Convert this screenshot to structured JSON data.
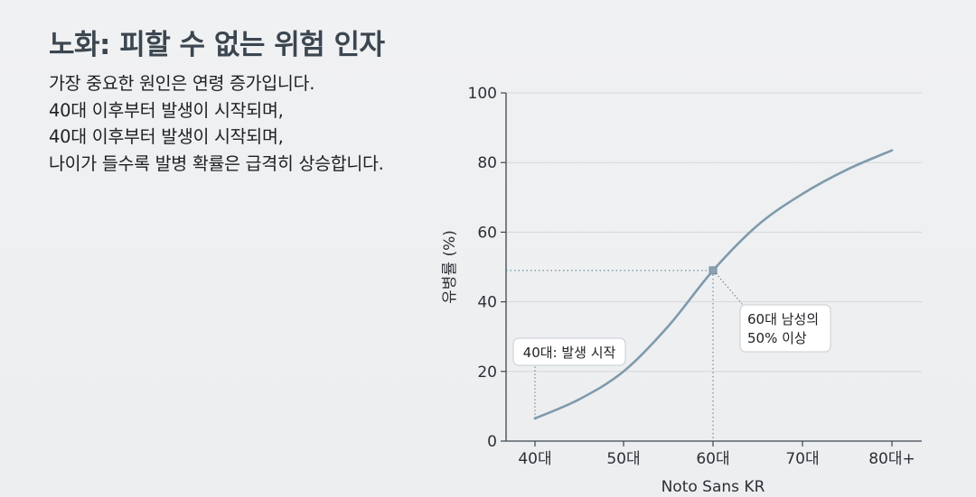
{
  "slide": {
    "title": "노화: 피할 수 없는 위험 인자",
    "body_lines": [
      "가장 중요한 원인은 연령 증가입니다.",
      "40대 이후부터 발생이 시작되며,",
      "40대 이후부터 발생이 시작되며,",
      "나이가 들수록 발병 확률은 급격히 상승합니다."
    ]
  },
  "chart_data": {
    "type": "line",
    "title": "",
    "xlabel": "Noto Sans KR",
    "ylabel": "유병률 (%)",
    "categories": [
      "40대",
      "50대",
      "60대",
      "70대",
      "80대+"
    ],
    "yticks": [
      0,
      20,
      40,
      60,
      80,
      100
    ],
    "ylim": [
      0,
      100
    ],
    "grid": true,
    "series": [
      {
        "x": [
          40,
          45,
          50,
          55,
          60,
          65,
          70,
          75,
          80
        ],
        "values": [
          6.5,
          12,
          20,
          33,
          49,
          62,
          71,
          78,
          83.5
        ],
        "color": "#7f9aac"
      }
    ],
    "highlight": {
      "x": 60,
      "y": 49
    },
    "annotations": [
      {
        "text": "40대: 발생 시작",
        "x": 40,
        "y": 6.5
      },
      {
        "text_lines": [
          "60대 남성의",
          "50% 이상"
        ],
        "x": 60,
        "y": 49
      }
    ],
    "colors": {
      "axis": "#3c4650",
      "grid": "#d4d7da",
      "line": "#7f9aac",
      "guide": "#4c7c8f",
      "annotation_border": "#c8ccd0"
    }
  }
}
